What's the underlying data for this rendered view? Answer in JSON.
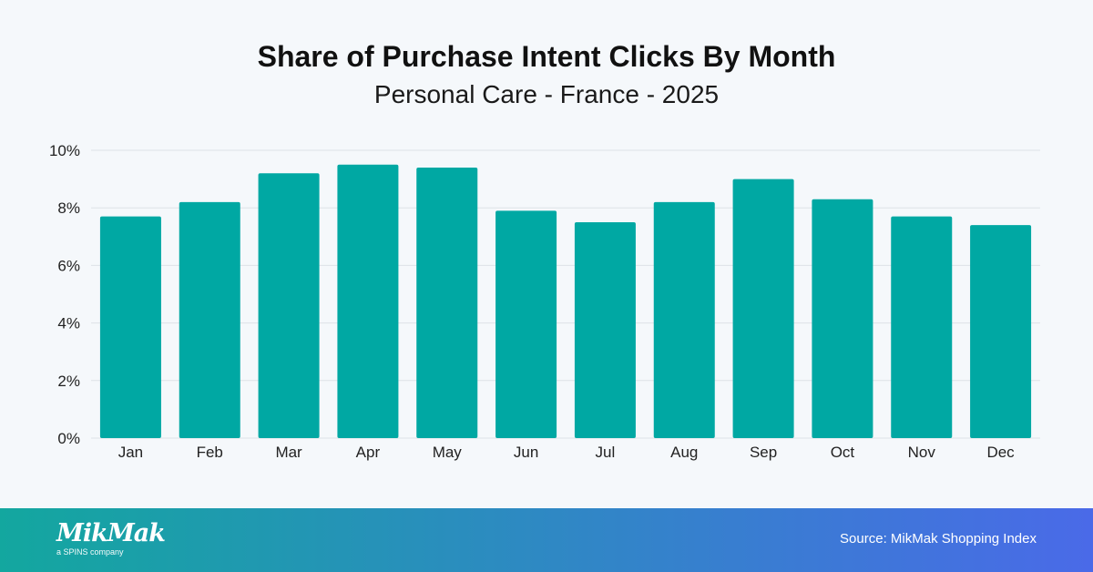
{
  "chart_data": {
    "type": "bar",
    "title": "Share of Purchase Intent Clicks By Month",
    "subtitle": "Personal Care - France - 2025",
    "categories": [
      "Jan",
      "Feb",
      "Mar",
      "Apr",
      "May",
      "Jun",
      "Jul",
      "Aug",
      "Sep",
      "Oct",
      "Nov",
      "Dec"
    ],
    "values": [
      7.7,
      8.2,
      9.2,
      9.5,
      9.4,
      7.9,
      7.5,
      8.2,
      9.0,
      8.3,
      7.7,
      7.4
    ],
    "unit": "%",
    "ylim": [
      0,
      10
    ],
    "yticks": [
      0,
      2,
      4,
      6,
      8,
      10
    ],
    "ytick_labels": [
      "0%",
      "2%",
      "4%",
      "6%",
      "8%",
      "10%"
    ],
    "xlabel": "",
    "ylabel": "",
    "grid": true,
    "bar_color": "#00a8a3"
  },
  "footer": {
    "logo_text": "MikMak",
    "logo_tagline": "a SPINS company",
    "source": "Source: MikMak Shopping Index",
    "gradient_start": "#13a79f",
    "gradient_end": "#4a6ae8"
  }
}
